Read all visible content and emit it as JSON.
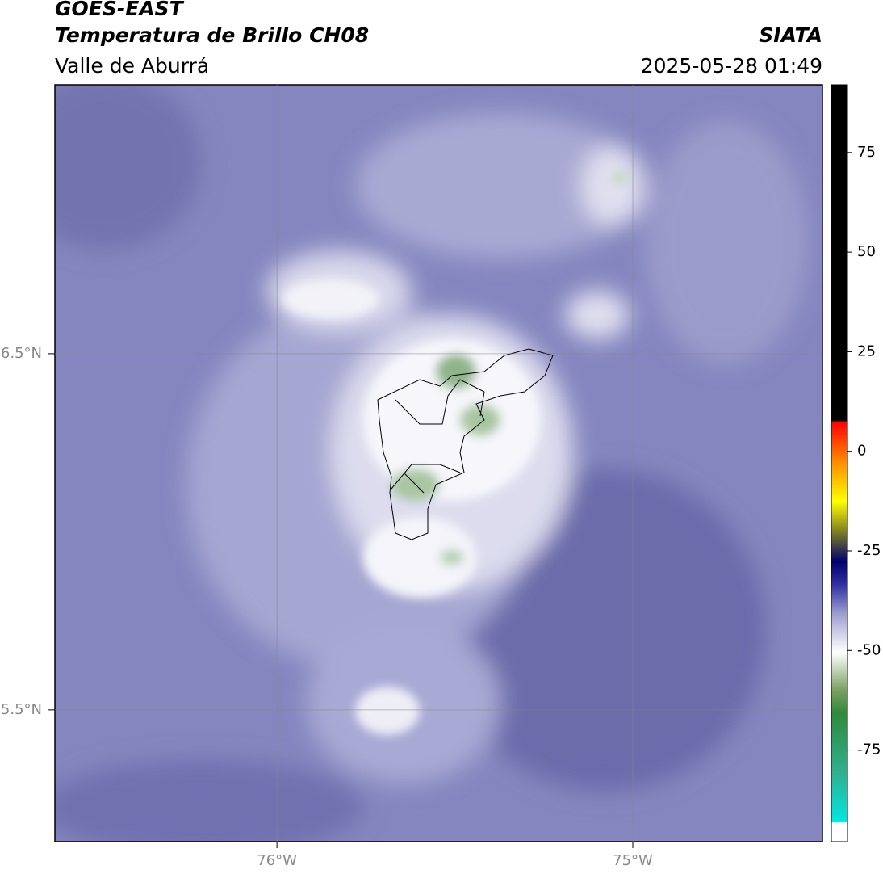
{
  "header": {
    "title": "GOES-EAST",
    "subtitle": "Temperatura de Brillo CH08",
    "region": "Valle de Aburrá",
    "source": "SIATA",
    "timestamp": "2025-05-28 01:49"
  },
  "map": {
    "lon_range": [
      -76.624,
      -74.467
    ],
    "lat_range": [
      5.13,
      7.255
    ],
    "lat_ticks": [
      {
        "value": 6.5,
        "label": "6.5°N"
      },
      {
        "value": 5.5,
        "label": "5.5°N"
      }
    ],
    "lon_ticks": [
      {
        "value": -76,
        "label": "76°W"
      },
      {
        "value": -75,
        "label": "75°W"
      }
    ]
  },
  "colorbar": {
    "range": [
      -98,
      92
    ],
    "ticks": [
      75,
      50,
      25,
      0,
      -25,
      -50,
      -75
    ]
  }
}
